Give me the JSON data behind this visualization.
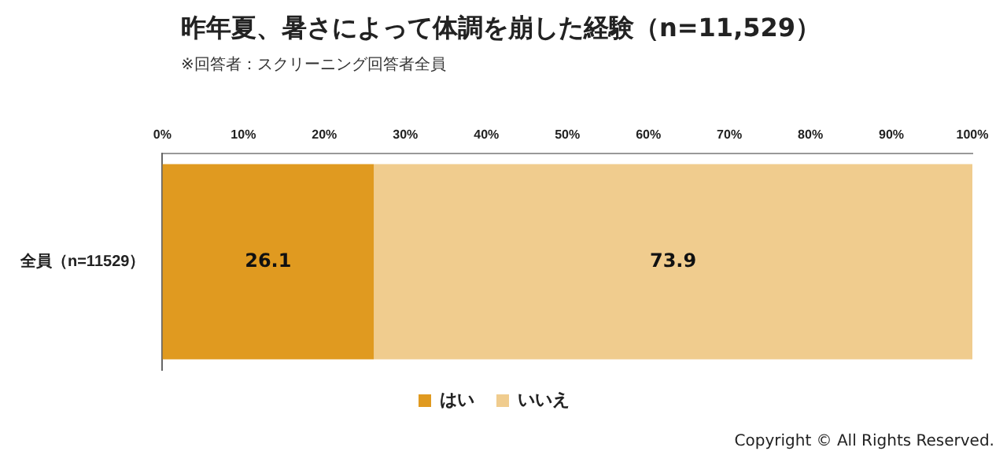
{
  "chart_data": {
    "type": "bar",
    "title": "昨年夏、暑さによって体調を崩した経験（n=11,529）",
    "subtitle": "※回答者：スクリーニング回答者全員",
    "orientation": "horizontal",
    "stacked": true,
    "categories": [
      "全員（n=11529）"
    ],
    "series": [
      {
        "name": "はい",
        "color": "#e09a20",
        "values": [
          26.1
        ]
      },
      {
        "name": "いいえ",
        "color": "#f0cc8e",
        "values": [
          73.9
        ]
      }
    ],
    "xlim": [
      0,
      100
    ],
    "xticks": [
      {
        "value": 0,
        "label": "0%"
      },
      {
        "value": 10,
        "label": "10%"
      },
      {
        "value": 20,
        "label": "20%"
      },
      {
        "value": 30,
        "label": "30%"
      },
      {
        "value": 40,
        "label": "40%"
      },
      {
        "value": 50,
        "label": "50%"
      },
      {
        "value": 60,
        "label": "60%"
      },
      {
        "value": 70,
        "label": "70%"
      },
      {
        "value": 80,
        "label": "80%"
      },
      {
        "value": 90,
        "label": "90%"
      },
      {
        "value": 100,
        "label": "100%"
      }
    ],
    "data_labels": true,
    "grid": false,
    "legend": "bottom",
    "annotations": [
      "Copyright © All Rights Reserved."
    ]
  }
}
